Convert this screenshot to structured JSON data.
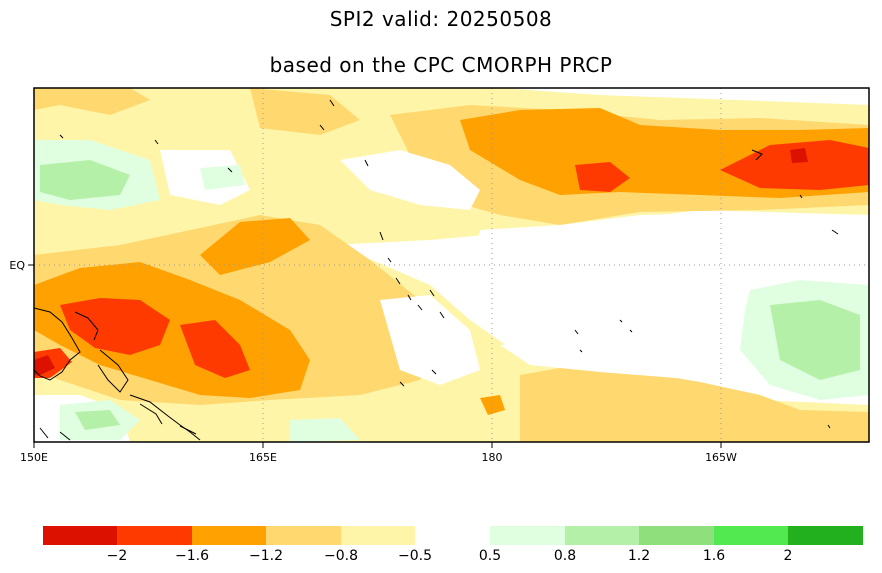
{
  "title": "SPI2  valid: 20250508",
  "subtitle": "based on the CPC CMORPH PRCP",
  "axes": {
    "x_ticks": [
      "150E",
      "165E",
      "180",
      "165W"
    ],
    "y_ticks": [
      "EQ"
    ]
  },
  "colorbar": {
    "dry_colors": [
      "#dd1100",
      "#ff3a00",
      "#ffa100",
      "#ffd86f",
      "#fff5a8"
    ],
    "wet_colors": [
      "#e0ffe0",
      "#b5f0a8",
      "#8fe07d",
      "#52e850",
      "#22b01e"
    ],
    "labels": [
      "−2",
      "−1.6",
      "−1.2",
      "−0.8",
      "−0.5",
      "0.5",
      "0.8",
      "1.2",
      "1.6",
      "2"
    ]
  }
}
